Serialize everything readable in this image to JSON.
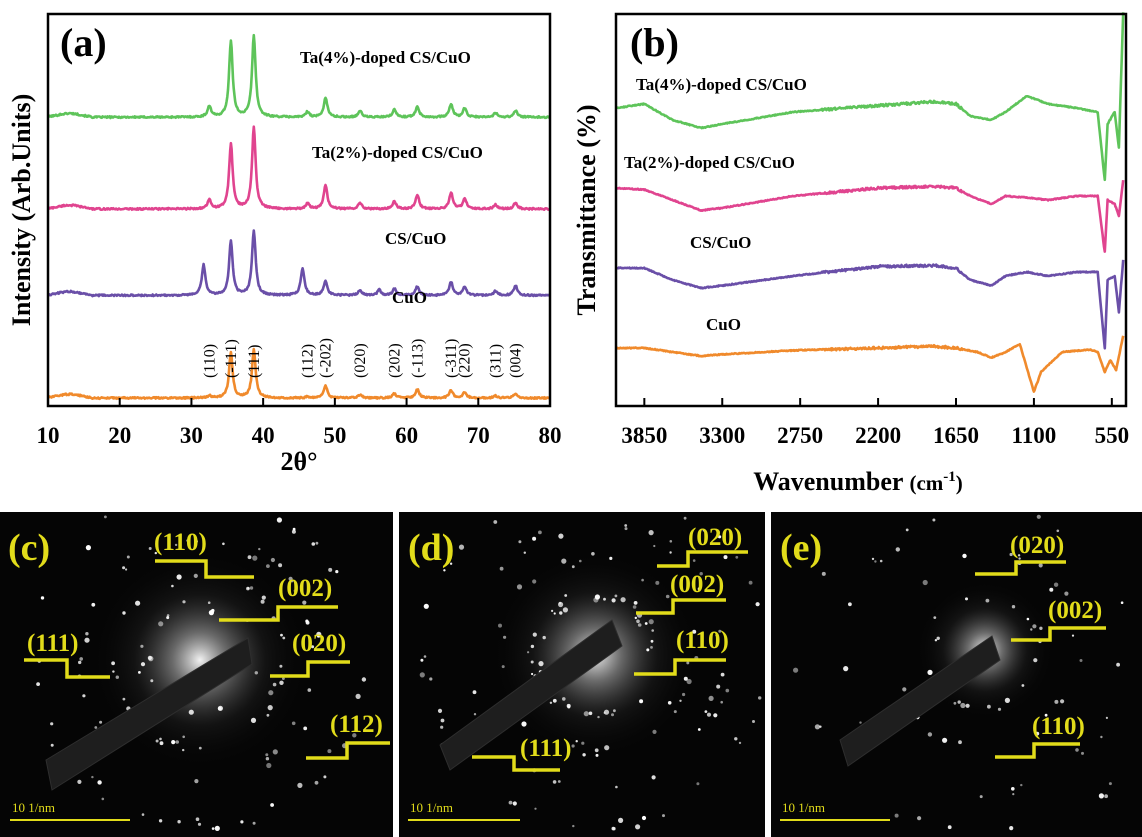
{
  "colors": {
    "Ta(4%)-doped CS/CuO": "#5ec45a",
    "Ta(2%)-doped CS/CuO": "#e0448f",
    "CS/CuO": "#6a4fa8",
    "CuO": "#f08a2c",
    "tem_annotation": "#e2dc1a"
  },
  "chart_data": [
    {
      "panel": "(a)",
      "type": "line",
      "xlabel": "2θ°",
      "ylabel": "Intensity (Arb.Units)",
      "xlim": [
        10,
        80
      ],
      "xticks": [
        "10",
        "20",
        "30",
        "40",
        "50",
        "60",
        "70",
        "80"
      ],
      "grid": false,
      "series": [
        {
          "name": "Ta(4%)-doped CS/CuO",
          "offset": 2.6,
          "peaks": [
            [
              32.5,
              0.1
            ],
            [
              35.5,
              0.7
            ],
            [
              38.7,
              0.75
            ],
            [
              46.2,
              0.05
            ],
            [
              48.7,
              0.18
            ],
            [
              53.5,
              0.06
            ],
            [
              58.3,
              0.07
            ],
            [
              61.5,
              0.1
            ],
            [
              66.2,
              0.12
            ],
            [
              68.1,
              0.08
            ],
            [
              72.4,
              0.04
            ],
            [
              75.2,
              0.06
            ]
          ]
        },
        {
          "name": "Ta(2%)-doped CS/CuO",
          "offset": 1.75,
          "peaks": [
            [
              32.5,
              0.08
            ],
            [
              35.5,
              0.6
            ],
            [
              38.7,
              0.75
            ],
            [
              46.2,
              0.05
            ],
            [
              48.7,
              0.22
            ],
            [
              53.5,
              0.06
            ],
            [
              58.3,
              0.07
            ],
            [
              61.5,
              0.13
            ],
            [
              66.2,
              0.15
            ],
            [
              68.1,
              0.1
            ],
            [
              72.4,
              0.04
            ],
            [
              75.2,
              0.06
            ]
          ]
        },
        {
          "name": "CS/CuO",
          "offset": 0.95,
          "peaks": [
            [
              31.7,
              0.28
            ],
            [
              35.5,
              0.5
            ],
            [
              38.7,
              0.6
            ],
            [
              45.5,
              0.25
            ],
            [
              48.7,
              0.13
            ],
            [
              53.5,
              0.05
            ],
            [
              56.2,
              0.05
            ],
            [
              58.3,
              0.06
            ],
            [
              61.5,
              0.08
            ],
            [
              66.2,
              0.12
            ],
            [
              68.1,
              0.08
            ],
            [
              72.4,
              0.04
            ],
            [
              75.2,
              0.09
            ]
          ]
        },
        {
          "name": "CuO",
          "offset": 0.0,
          "peaks": [
            [
              32.5,
              0.02
            ],
            [
              35.5,
              0.42
            ],
            [
              38.7,
              0.45
            ],
            [
              46.2,
              0.01
            ],
            [
              48.7,
              0.11
            ],
            [
              53.5,
              0.03
            ],
            [
              58.3,
              0.04
            ],
            [
              61.5,
              0.08
            ],
            [
              66.2,
              0.07
            ],
            [
              68.1,
              0.05
            ],
            [
              72.4,
              0.02
            ],
            [
              75.2,
              0.04
            ]
          ]
        }
      ],
      "peak_labels": [
        {
          "label": "(110)",
          "x": 32.5
        },
        {
          "label": "(-111)",
          "x": 35.5
        },
        {
          "label": "(111)",
          "x": 38.7
        },
        {
          "label": "(112)",
          "x": 46.2
        },
        {
          "label": "(-202)",
          "x": 48.7
        },
        {
          "label": "(020)",
          "x": 53.5
        },
        {
          "label": "(202)",
          "x": 58.3
        },
        {
          "label": "(-113)",
          "x": 61.5
        },
        {
          "label": "(-311)",
          "x": 66.2
        },
        {
          "label": "(220)",
          "x": 68.1
        },
        {
          "label": "(311)",
          "x": 72.4
        },
        {
          "label": "(004)",
          "x": 75.2
        }
      ]
    },
    {
      "panel": "(b)",
      "type": "line",
      "xlabel": "Wavenumber (cm⁻¹)",
      "ylabel": "Transmittance (%)",
      "xlim": [
        4050,
        450
      ],
      "xticks": [
        "3850",
        "3300",
        "2750",
        "2200",
        "1650",
        "1100",
        "550"
      ],
      "grid": false,
      "series": [
        {
          "name": "Ta(4%)-doped CS/CuO",
          "offset": 3.0,
          "points": [
            [
              4050,
              0
            ],
            [
              3850,
              0.05
            ],
            [
              3650,
              -0.15
            ],
            [
              3450,
              -0.25
            ],
            [
              3300,
              -0.2
            ],
            [
              2800,
              -0.05
            ],
            [
              2200,
              0.03
            ],
            [
              1800,
              0.08
            ],
            [
              1650,
              0.05
            ],
            [
              1550,
              -0.1
            ],
            [
              1400,
              -0.15
            ],
            [
              1300,
              -0.05
            ],
            [
              1150,
              0.15
            ],
            [
              1000,
              0.05
            ],
            [
              800,
              0
            ],
            [
              650,
              -0.05
            ],
            [
              600,
              -0.9
            ],
            [
              580,
              -0.2
            ],
            [
              530,
              -0.05
            ],
            [
              500,
              -0.5
            ],
            [
              470,
              1.2
            ]
          ]
        },
        {
          "name": "Ta(2%)-doped CS/CuO",
          "offset": 2.0,
          "points": [
            [
              4050,
              0
            ],
            [
              3850,
              -0.02
            ],
            [
              3650,
              -0.15
            ],
            [
              3450,
              -0.28
            ],
            [
              3300,
              -0.25
            ],
            [
              2800,
              -0.1
            ],
            [
              2200,
              0
            ],
            [
              1800,
              0.02
            ],
            [
              1650,
              0
            ],
            [
              1550,
              -0.1
            ],
            [
              1400,
              -0.2
            ],
            [
              1300,
              -0.1
            ],
            [
              1150,
              -0.12
            ],
            [
              1000,
              -0.15
            ],
            [
              800,
              -0.1
            ],
            [
              650,
              -0.1
            ],
            [
              600,
              -0.8
            ],
            [
              580,
              -0.15
            ],
            [
              530,
              -0.2
            ],
            [
              500,
              -0.35
            ],
            [
              470,
              0.1
            ]
          ]
        },
        {
          "name": "CS/CuO",
          "offset": 1.0,
          "points": [
            [
              4050,
              0
            ],
            [
              3850,
              0
            ],
            [
              3650,
              -0.15
            ],
            [
              3450,
              -0.25
            ],
            [
              3300,
              -0.22
            ],
            [
              2800,
              -0.1
            ],
            [
              2200,
              0.02
            ],
            [
              1800,
              0.03
            ],
            [
              1650,
              0
            ],
            [
              1550,
              -0.15
            ],
            [
              1400,
              -0.22
            ],
            [
              1300,
              -0.1
            ],
            [
              1150,
              -0.05
            ],
            [
              1000,
              -0.1
            ],
            [
              800,
              -0.05
            ],
            [
              650,
              -0.05
            ],
            [
              600,
              -1.0
            ],
            [
              580,
              -0.15
            ],
            [
              530,
              -0.1
            ],
            [
              500,
              -0.55
            ],
            [
              470,
              0.1
            ]
          ]
        },
        {
          "name": "CuO",
          "offset": 0.0,
          "points": [
            [
              4050,
              0
            ],
            [
              3850,
              0
            ],
            [
              3650,
              -0.05
            ],
            [
              3450,
              -0.1
            ],
            [
              3300,
              -0.08
            ],
            [
              2800,
              -0.03
            ],
            [
              2200,
              0
            ],
            [
              1800,
              0.02
            ],
            [
              1650,
              0
            ],
            [
              1500,
              -0.05
            ],
            [
              1400,
              -0.12
            ],
            [
              1300,
              -0.05
            ],
            [
              1200,
              0.05
            ],
            [
              1100,
              -0.55
            ],
            [
              1050,
              -0.3
            ],
            [
              900,
              -0.05
            ],
            [
              700,
              -0.02
            ],
            [
              650,
              -0.05
            ],
            [
              600,
              -0.3
            ],
            [
              560,
              -0.15
            ],
            [
              520,
              -0.28
            ],
            [
              470,
              0.15
            ]
          ]
        }
      ]
    }
  ],
  "panel_a": {
    "letter": "(a)"
  },
  "panel_b": {
    "letter": "(b)",
    "xlabel_main": "Wavenumber",
    "xlabel_unit": "(cm",
    "xlabel_sup": "-1",
    "xlabel_close": ")"
  },
  "tem_panels": [
    {
      "letter": "(c)",
      "labels": [
        "(110)",
        "(002)",
        "(111)",
        "(020)",
        "(112)"
      ],
      "scale_text": "10 1/nm"
    },
    {
      "letter": "(d)",
      "labels": [
        "(020)",
        "(002)",
        "(110)",
        "(111)"
      ],
      "scale_text": "10 1/nm"
    },
    {
      "letter": "(e)",
      "labels": [
        "(020)",
        "(002)",
        "(110)"
      ],
      "scale_text": "10 1/nm"
    }
  ]
}
